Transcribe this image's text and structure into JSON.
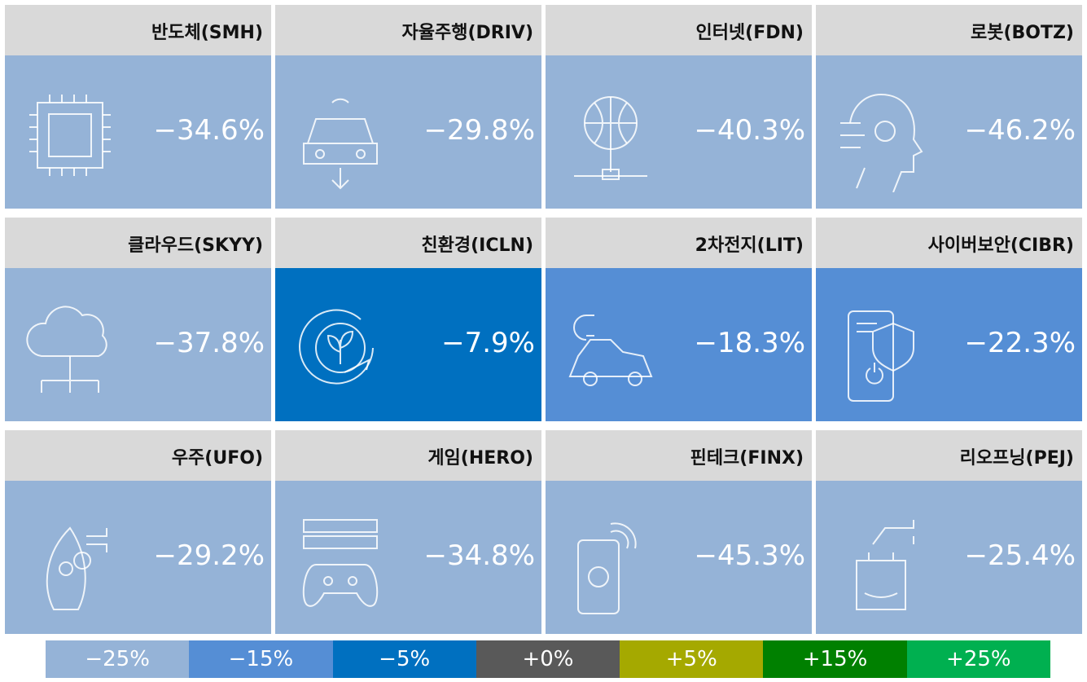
{
  "chart_data": {
    "type": "heatmap",
    "categories": [
      "반도체(SMH)",
      "자율주행(DRIV)",
      "인터넷(FDN)",
      "로봇(BOTZ)",
      "클라우드(SKYY)",
      "친환경(ICLN)",
      "2차전지(LIT)",
      "사이버보안(CIBR)",
      "우주(UFO)",
      "게임(HERO)",
      "핀테크(FINX)",
      "리오프닝(PEJ)"
    ],
    "values": [
      -34.6,
      -29.8,
      -40.3,
      -46.2,
      -37.8,
      -7.9,
      -18.3,
      -22.3,
      -29.2,
      -34.8,
      -45.3,
      -25.4
    ],
    "value_labels": [
      "−34.6%",
      "−29.8%",
      "−40.3%",
      "−46.2%",
      "−37.8%",
      "−7.9%",
      "−18.3%",
      "−22.3%",
      "−29.2%",
      "−34.8%",
      "−45.3%",
      "−25.4%"
    ],
    "scale": [
      {
        "value": -25,
        "label": "−25%",
        "color": "#95b3d7"
      },
      {
        "value": -15,
        "label": "−15%",
        "color": "#558ed5"
      },
      {
        "value": -5,
        "label": "−5%",
        "color": "#0070c0"
      },
      {
        "value": 0,
        "label": "+0%",
        "color": "#595959"
      },
      {
        "value": 5,
        "label": "+5%",
        "color": "#a5a900"
      },
      {
        "value": 15,
        "label": "+15%",
        "color": "#008000"
      },
      {
        "value": 25,
        "label": "+25%",
        "color": "#00b050"
      }
    ]
  }
}
